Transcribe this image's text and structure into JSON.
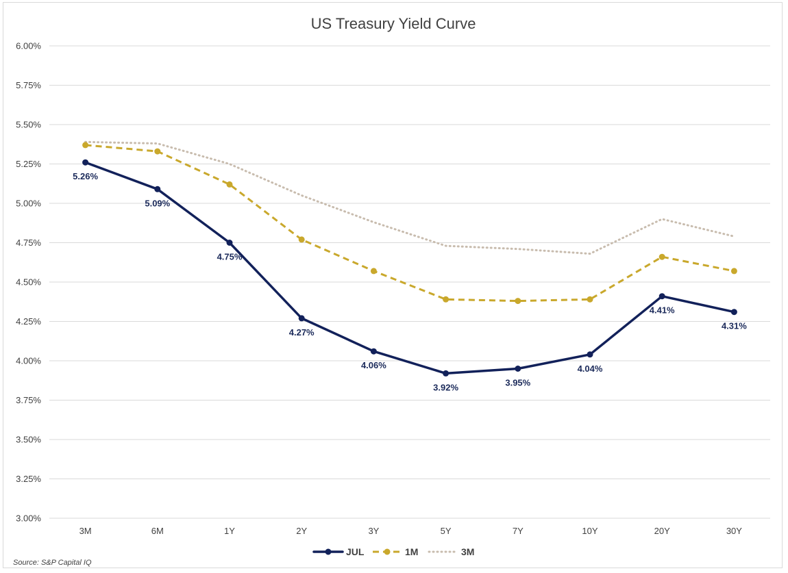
{
  "chart_data": {
    "type": "line",
    "title": "US Treasury Yield Curve",
    "categories": [
      "3M",
      "6M",
      "1Y",
      "2Y",
      "3Y",
      "5Y",
      "7Y",
      "10Y",
      "20Y",
      "30Y"
    ],
    "ylim": [
      3.0,
      6.0
    ],
    "yticks": [
      3.0,
      3.25,
      3.5,
      3.75,
      4.0,
      4.25,
      4.5,
      4.75,
      5.0,
      5.25,
      5.5,
      5.75,
      6.0
    ],
    "ytick_labels": [
      "3.00%",
      "3.25%",
      "3.50%",
      "3.75%",
      "4.00%",
      "4.25%",
      "4.50%",
      "4.75%",
      "5.00%",
      "5.25%",
      "5.50%",
      "5.75%",
      "6.00%"
    ],
    "grid": true,
    "legend_position": "bottom",
    "series": [
      {
        "name": "JUL",
        "color": "#12215a",
        "style": "solid",
        "values": [
          5.26,
          5.09,
          4.75,
          4.27,
          4.06,
          3.92,
          3.95,
          4.04,
          4.41,
          4.31
        ],
        "labels": [
          "5.26%",
          "5.09%",
          "4.75%",
          "4.27%",
          "4.06%",
          "3.92%",
          "3.95%",
          "4.04%",
          "4.41%",
          "4.31%"
        ]
      },
      {
        "name": "1M",
        "color": "#c9a82c",
        "style": "dashed",
        "values": [
          5.37,
          5.33,
          5.12,
          4.77,
          4.57,
          4.39,
          4.38,
          4.39,
          4.66,
          4.57
        ]
      },
      {
        "name": "3M",
        "color": "#c8bcae",
        "style": "dotted",
        "values": [
          5.39,
          5.38,
          5.25,
          5.05,
          4.88,
          4.73,
          4.71,
          4.68,
          4.9,
          4.79
        ]
      }
    ]
  },
  "source": "Source: S&P Capital IQ"
}
